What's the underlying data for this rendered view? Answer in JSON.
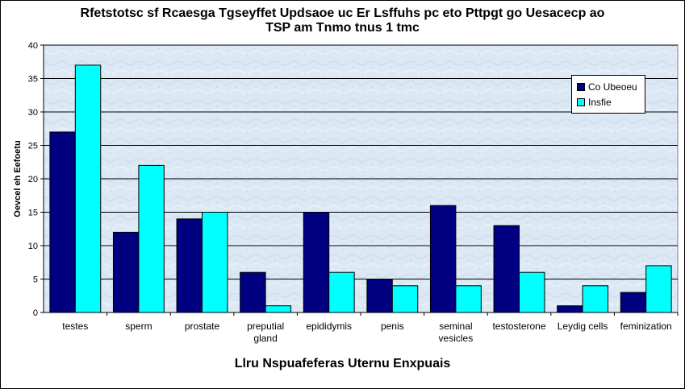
{
  "title_line1": "Rfetstotsc sf Rcaesga Tgseyffet Updsaoe uc Er Lsffuhs pc eto Pttpgt go  Uesacecp ao",
  "title_line2": "TSP am Tnmo tnus 1 tmc",
  "colors": {
    "series1": "#000080",
    "series2": "#00ffff",
    "plot_bg": "#dce9f5",
    "grid": "#000000"
  },
  "chart_data": {
    "type": "bar",
    "xlabel": "Llru Nspuafeferas Uternu Enxpuais",
    "ylabel": "Oevcel eh Eefoetu",
    "ylim": [
      0,
      40
    ],
    "yticks": [
      0,
      5,
      10,
      15,
      20,
      25,
      30,
      35,
      40
    ],
    "grid": true,
    "legend_position": "top-right",
    "categories": [
      "testes",
      "sperm",
      "prostate",
      "preputial gland",
      "epididymis",
      "penis",
      "seminal vesicles",
      "testosterone",
      "Leydig cells",
      "feminization"
    ],
    "series": [
      {
        "name": "Co Ubeoeu",
        "values": [
          27,
          12,
          14,
          6,
          15,
          5,
          16,
          13,
          1,
          3
        ]
      },
      {
        "name": "Insfie",
        "values": [
          37,
          22,
          15,
          1,
          6,
          4,
          4,
          6,
          4,
          7
        ]
      }
    ]
  }
}
